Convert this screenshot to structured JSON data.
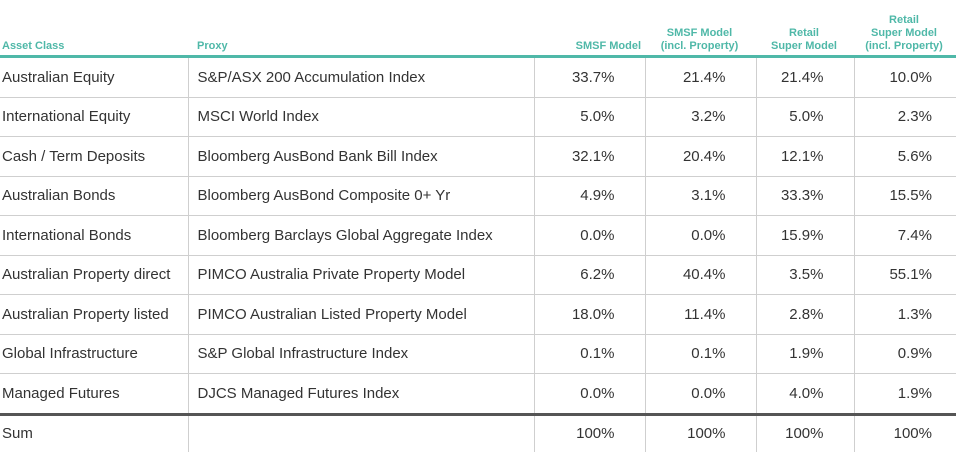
{
  "headers": {
    "asset_class": "Asset Class",
    "proxy": "Proxy",
    "smsf_model": "SMSF Model",
    "smsf_model_prop_1": "SMSF Model",
    "smsf_model_prop_2": "(incl. Property)",
    "retail_model_1": "Retail",
    "retail_model_2": "Super Model",
    "retail_prop_1": "Retail",
    "retail_prop_2": "Super Model",
    "retail_prop_3": "(incl. Property)"
  },
  "rows": [
    {
      "asset": "Australian Equity",
      "proxy": "S&P/ASX 200 Accumulation Index",
      "v1": "33.7%",
      "v2": "21.4%",
      "v3": "21.4%",
      "v4": "10.0%"
    },
    {
      "asset": "International Equity",
      "proxy": "MSCI World Index",
      "v1": "5.0%",
      "v2": "3.2%",
      "v3": "5.0%",
      "v4": "2.3%"
    },
    {
      "asset": "Cash / Term Deposits",
      "proxy": "Bloomberg AusBond Bank Bill Index",
      "v1": "32.1%",
      "v2": "20.4%",
      "v3": "12.1%",
      "v4": "5.6%"
    },
    {
      "asset": "Australian Bonds",
      "proxy": "Bloomberg AusBond Composite 0+ Yr",
      "v1": "4.9%",
      "v2": "3.1%",
      "v3": "33.3%",
      "v4": "15.5%"
    },
    {
      "asset": "International Bonds",
      "proxy": "Bloomberg Barclays Global Aggregate Index",
      "v1": "0.0%",
      "v2": "0.0%",
      "v3": "15.9%",
      "v4": "7.4%"
    },
    {
      "asset": "Australian Property direct",
      "proxy": "PIMCO Australia Private Property Model",
      "v1": "6.2%",
      "v2": "40.4%",
      "v3": "3.5%",
      "v4": "55.1%"
    },
    {
      "asset": "Australian Property listed",
      "proxy": "PIMCO Australian Listed Property Model",
      "v1": "18.0%",
      "v2": "11.4%",
      "v3": "2.8%",
      "v4": "1.3%"
    },
    {
      "asset": "Global Infrastructure",
      "proxy": "S&P Global Infrastructure Index",
      "v1": "0.1%",
      "v2": "0.1%",
      "v3": "1.9%",
      "v4": "0.9%"
    },
    {
      "asset": "Managed Futures",
      "proxy": "DJCS Managed Futures Index",
      "v1": "0.0%",
      "v2": "0.0%",
      "v3": "4.0%",
      "v4": "1.9%"
    }
  ],
  "sum": {
    "label": "Sum",
    "proxy": "",
    "v1": "100%",
    "v2": "100%",
    "v3": "100%",
    "v4": "100%"
  },
  "colors": {
    "header_accent": "#4fb8a8",
    "text": "#333333",
    "rule": "#cfcfcf",
    "sum_rule": "#555555"
  }
}
